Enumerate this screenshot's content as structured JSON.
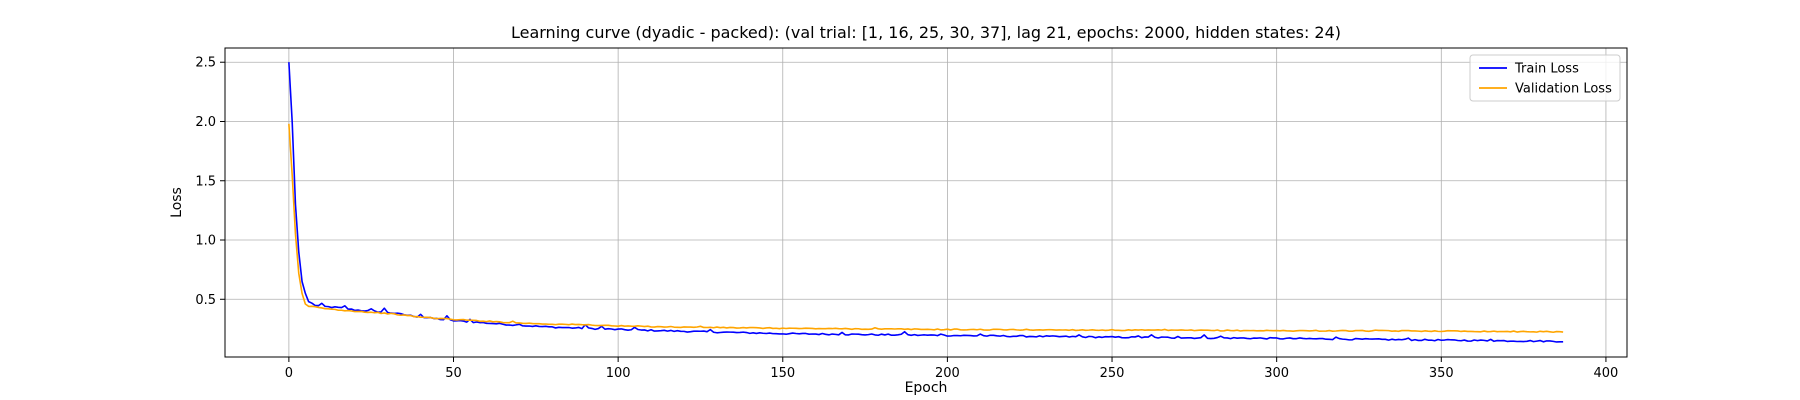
{
  "chart_data": {
    "type": "line",
    "title": "Learning curve (dyadic - packed): (val trial: [1, 16, 25, 30, 37], lag 21, epochs: 2000, hidden states: 24)",
    "xlabel": "Epoch",
    "ylabel": "Loss",
    "xlim": [
      -19.4,
      406.4
    ],
    "ylim": [
      0.013,
      2.62
    ],
    "xticks": [
      0,
      50,
      100,
      150,
      200,
      250,
      300,
      350,
      400
    ],
    "xtick_labels": [
      "0",
      "50",
      "100",
      "150",
      "200",
      "250",
      "300",
      "350",
      "400"
    ],
    "yticks": [
      0.5,
      1.0,
      1.5,
      2.0,
      2.5
    ],
    "ytick_labels": [
      "0.5",
      "1.0",
      "1.5",
      "2.0",
      "2.5"
    ],
    "grid": true,
    "legend": "top-right",
    "x_start": 0,
    "x_end": 387,
    "series": [
      {
        "name": "Train Loss",
        "color": "#0000ff",
        "keypoints": [
          [
            0,
            2.5
          ],
          [
            1,
            2.0
          ],
          [
            2,
            1.3
          ],
          [
            3,
            0.9
          ],
          [
            4,
            0.65
          ],
          [
            5,
            0.55
          ],
          [
            6,
            0.48
          ],
          [
            8,
            0.45
          ],
          [
            10,
            0.44
          ],
          [
            15,
            0.43
          ],
          [
            20,
            0.41
          ],
          [
            25,
            0.4
          ],
          [
            30,
            0.39
          ],
          [
            35,
            0.37
          ],
          [
            40,
            0.35
          ],
          [
            50,
            0.32
          ],
          [
            60,
            0.3
          ],
          [
            70,
            0.28
          ],
          [
            80,
            0.265
          ],
          [
            90,
            0.255
          ],
          [
            100,
            0.245
          ],
          [
            120,
            0.23
          ],
          [
            150,
            0.21
          ],
          [
            200,
            0.195
          ],
          [
            250,
            0.18
          ],
          [
            300,
            0.17
          ],
          [
            350,
            0.155
          ],
          [
            387,
            0.145
          ]
        ],
        "spikes": [
          [
            10,
            0.02
          ],
          [
            17,
            0.02
          ],
          [
            25,
            0.015
          ],
          [
            29,
            0.03
          ],
          [
            40,
            0.025
          ],
          [
            48,
            0.03
          ],
          [
            55,
            0.02
          ],
          [
            70,
            0.015
          ],
          [
            90,
            0.03
          ],
          [
            95,
            0.02
          ],
          [
            105,
            0.02
          ],
          [
            128,
            0.015
          ],
          [
            168,
            0.02
          ],
          [
            187,
            0.03
          ],
          [
            198,
            0.015
          ],
          [
            210,
            0.015
          ],
          [
            240,
            0.015
          ],
          [
            258,
            0.015
          ],
          [
            262,
            0.02
          ],
          [
            270,
            0.015
          ],
          [
            278,
            0.02
          ],
          [
            283,
            0.015
          ],
          [
            318,
            0.02
          ],
          [
            340,
            0.015
          ],
          [
            365,
            0.015
          ]
        ]
      },
      {
        "name": "Validation Loss",
        "color": "#ffa500",
        "keypoints": [
          [
            0,
            1.98
          ],
          [
            1,
            1.55
          ],
          [
            2,
            1.05
          ],
          [
            3,
            0.72
          ],
          [
            4,
            0.55
          ],
          [
            5,
            0.46
          ],
          [
            6,
            0.44
          ],
          [
            8,
            0.435
          ],
          [
            10,
            0.425
          ],
          [
            15,
            0.41
          ],
          [
            20,
            0.4
          ],
          [
            25,
            0.39
          ],
          [
            30,
            0.38
          ],
          [
            35,
            0.365
          ],
          [
            40,
            0.35
          ],
          [
            50,
            0.33
          ],
          [
            60,
            0.315
          ],
          [
            70,
            0.3
          ],
          [
            80,
            0.29
          ],
          [
            90,
            0.285
          ],
          [
            100,
            0.275
          ],
          [
            120,
            0.265
          ],
          [
            150,
            0.255
          ],
          [
            200,
            0.245
          ],
          [
            250,
            0.24
          ],
          [
            300,
            0.235
          ],
          [
            350,
            0.232
          ],
          [
            387,
            0.225
          ]
        ],
        "spikes": [
          [
            68,
            0.01
          ],
          [
            125,
            0.01
          ],
          [
            178,
            0.008
          ],
          [
            266,
            0.008
          ],
          [
            330,
            0.006
          ]
        ]
      }
    ]
  }
}
